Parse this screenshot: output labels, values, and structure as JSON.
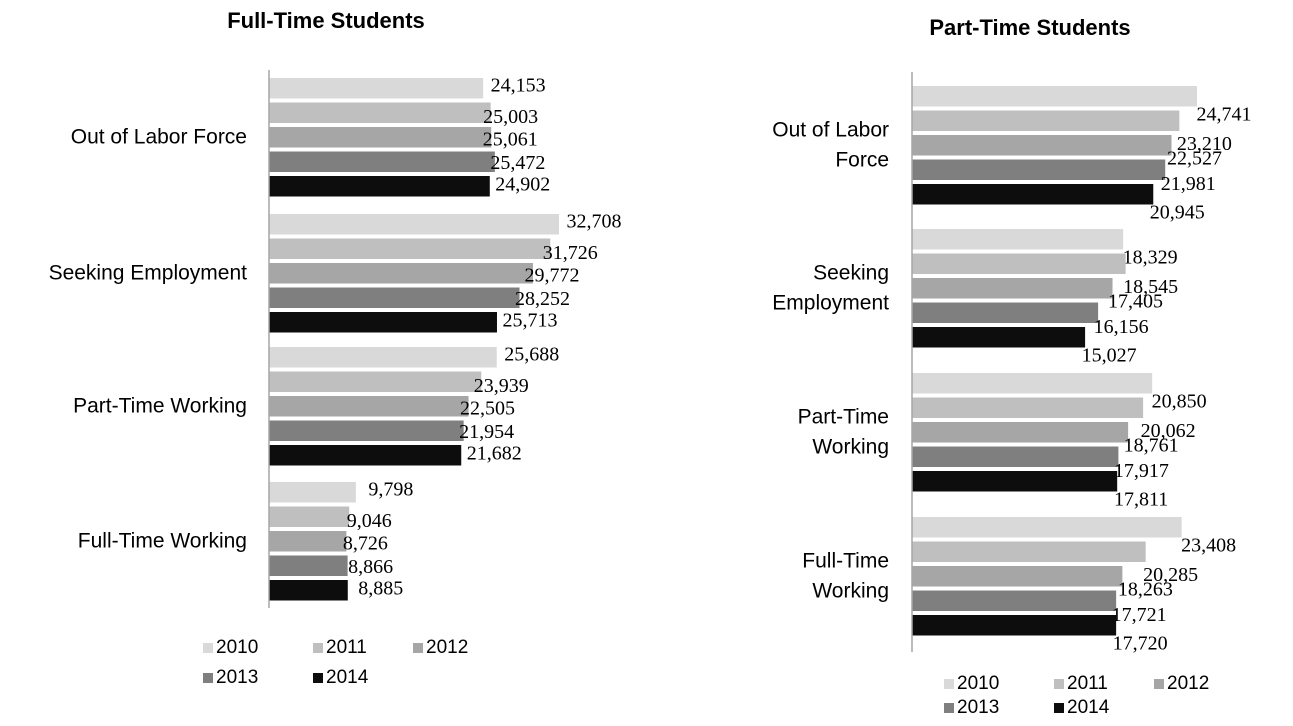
{
  "chart_data": [
    {
      "type": "bar",
      "orientation": "horizontal",
      "title": "Full-Time Students",
      "categories": [
        [
          "Out of Labor Force"
        ],
        [
          "Seeking Employment"
        ],
        [
          "Part-Time Working"
        ],
        [
          "Full-Time Working"
        ]
      ],
      "series": [
        {
          "name": "2010",
          "color": "#d9d9d9",
          "values": [
            24153,
            32708,
            25688,
            9798
          ]
        },
        {
          "name": "2011",
          "color": "#bfbfbf",
          "values": [
            25003,
            31726,
            23939,
            9046
          ]
        },
        {
          "name": "2012",
          "color": "#a6a6a6",
          "values": [
            25061,
            29772,
            22505,
            8726
          ]
        },
        {
          "name": "2013",
          "color": "#7f7f7f",
          "values": [
            25472,
            28252,
            21954,
            8866
          ]
        },
        {
          "name": "2014",
          "color": "#0d0d0d",
          "values": [
            24902,
            25713,
            21682,
            8885
          ]
        }
      ],
      "data_labels": [
        [
          "24,153",
          "32,708",
          "25,688",
          "9,798"
        ],
        [
          "25,003",
          "31,726",
          "23,939",
          "9,046"
        ],
        [
          "25,061",
          "29,772",
          "22,505",
          "8,726"
        ],
        [
          "25,472",
          "28,252",
          "21,954",
          "8,866"
        ],
        [
          "24,902",
          "25,713",
          "21,682",
          "8,885"
        ]
      ],
      "xlim": [
        0,
        33000
      ],
      "grid": false,
      "legend": "bottom"
    },
    {
      "type": "bar",
      "orientation": "horizontal",
      "title": "Part-Time Students",
      "categories": [
        [
          "Out of Labor",
          "Force"
        ],
        [
          "Seeking",
          "Employment"
        ],
        [
          "Part-Time",
          "Working"
        ],
        [
          "Full-Time",
          "Working"
        ]
      ],
      "series": [
        {
          "name": "2010",
          "color": "#d9d9d9",
          "values": [
            24741,
            18329,
            20850,
            23408
          ]
        },
        {
          "name": "2011",
          "color": "#bfbfbf",
          "values": [
            23210,
            18545,
            20062,
            20285
          ]
        },
        {
          "name": "2012",
          "color": "#a6a6a6",
          "values": [
            22527,
            17405,
            18761,
            18263
          ]
        },
        {
          "name": "2013",
          "color": "#7f7f7f",
          "values": [
            21981,
            16156,
            17917,
            17721
          ]
        },
        {
          "name": "2014",
          "color": "#0d0d0d",
          "values": [
            20945,
            15027,
            17811,
            17720
          ]
        }
      ],
      "data_labels": [
        [
          "24,741",
          "18,329",
          "20,850",
          "23,408"
        ],
        [
          "23,210",
          "18,545",
          "20,062",
          "20,285"
        ],
        [
          "22,527",
          "17,405",
          "18,761",
          "18,263"
        ],
        [
          "21,981",
          "16,156",
          "17,917",
          "17,721"
        ],
        [
          "20,945",
          "15,027",
          "17,811",
          "17,720"
        ]
      ],
      "xlim": [
        0,
        25000
      ],
      "grid": false,
      "legend": "bottom"
    }
  ]
}
